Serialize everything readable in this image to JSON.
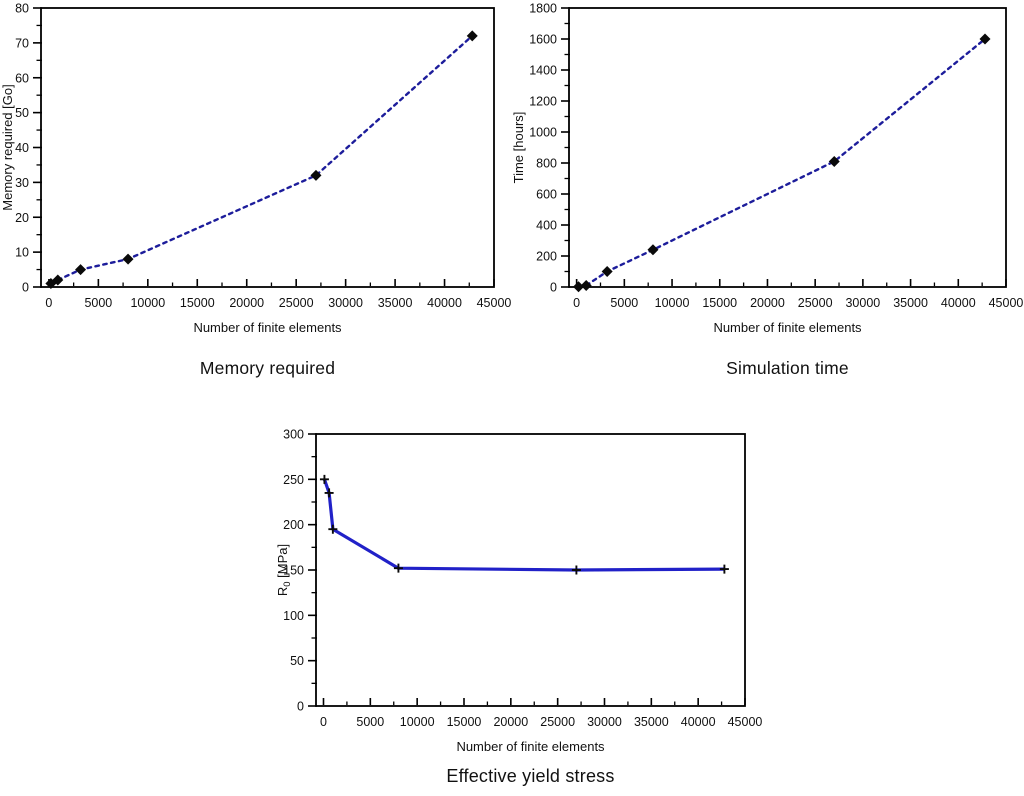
{
  "page": {
    "background": "#ffffff",
    "text_color": "#111111"
  },
  "chart_data": [
    {
      "id": "memory-required",
      "type": "line",
      "title": "Memory required",
      "xlabel": "Number of finite elements",
      "ylabel": "Memory required [Go]",
      "x": [
        200,
        900,
        3200,
        8000,
        27000,
        42800
      ],
      "y": [
        1,
        2,
        5,
        8,
        32,
        72
      ],
      "xlim": [
        -800,
        45000
      ],
      "ylim": [
        0,
        80
      ],
      "xticks": {
        "major": 5000,
        "minor": 2500
      },
      "yticks": {
        "major": 10,
        "minor": 5
      },
      "grid": false,
      "legend": null,
      "line": {
        "style": "dashed",
        "color": "#1d1d9b",
        "width": 2.4
      },
      "marker": {
        "shape": "diamond",
        "color": "#0a0a0a",
        "size": 11
      }
    },
    {
      "id": "simulation-time",
      "type": "line",
      "title": "Simulation time",
      "xlabel": "Number of finite elements",
      "ylabel": "Time [hours]",
      "x": [
        200,
        1000,
        3200,
        8000,
        27000,
        42800
      ],
      "y": [
        2,
        10,
        100,
        240,
        810,
        1600
      ],
      "xlim": [
        -800,
        45000
      ],
      "ylim": [
        0,
        1800
      ],
      "xticks": {
        "major": 5000,
        "minor": 2500
      },
      "yticks": {
        "major": 200,
        "minor": 100
      },
      "grid": false,
      "legend": null,
      "line": {
        "style": "dashed",
        "color": "#1d1d9b",
        "width": 2.4
      },
      "marker": {
        "shape": "diamond",
        "color": "#0a0a0a",
        "size": 11
      }
    },
    {
      "id": "effective-yield-stress",
      "type": "line",
      "title": "Effective yield stress",
      "xlabel": "Number of finite elements",
      "ylabel": {
        "pre": "R",
        "sub": "0",
        "post": " [MPa]"
      },
      "x": [
        100,
        600,
        1000,
        8000,
        27000,
        42800
      ],
      "y": [
        250,
        235,
        195,
        152,
        150,
        151
      ],
      "xlim": [
        -800,
        45000
      ],
      "ylim": [
        0,
        300
      ],
      "xticks": {
        "major": 5000,
        "minor": 2500
      },
      "yticks": {
        "major": 50,
        "minor": 25
      },
      "grid": false,
      "legend": null,
      "line": {
        "style": "solid",
        "color": "#2121c8",
        "width": 3.2
      },
      "marker": {
        "shape": "plus",
        "color": "#0a0a0a",
        "size": 9
      }
    }
  ]
}
